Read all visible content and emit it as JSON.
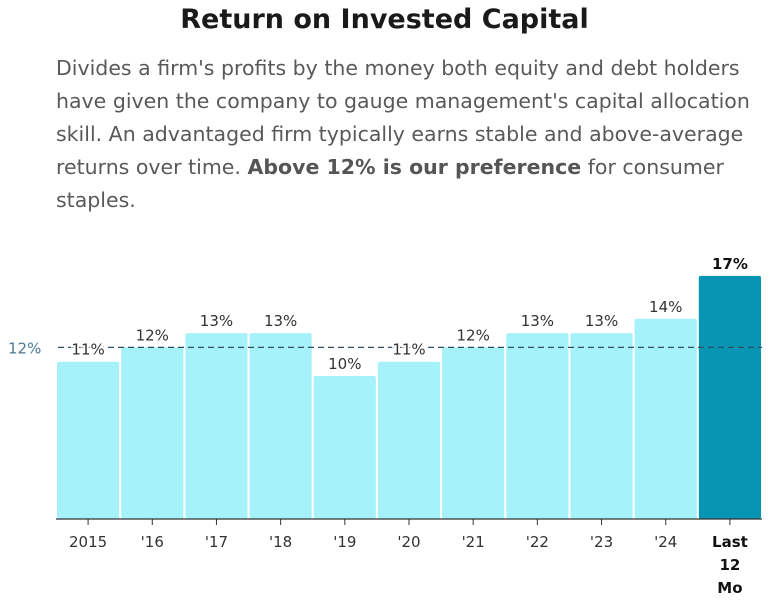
{
  "title": "Return on Invested Capital",
  "description": {
    "part1": "Divides a firm's profits by the money both equity and debt holders have given the company to gauge management's capital allocation skill. An advantaged firm typically earns stable and above-average returns over time. ",
    "bold": "Above 12% is our preference",
    "part2": " for consumer staples."
  },
  "chart_data": {
    "type": "bar",
    "categories": [
      "2015",
      "'16",
      "'17",
      "'18",
      "'19",
      "'20",
      "'21",
      "'22",
      "'23",
      "'24",
      "Last 12 Mo"
    ],
    "values": [
      11,
      12,
      13,
      13,
      10,
      11,
      12,
      13,
      13,
      14,
      17
    ],
    "value_labels": [
      "11%",
      "12%",
      "13%",
      "13%",
      "10%",
      "11%",
      "12%",
      "13%",
      "13%",
      "14%",
      "17%"
    ],
    "highlight_index": 10,
    "reference_line": {
      "value": 12,
      "label": "12%"
    },
    "colors": {
      "bar": "#a6f2fb",
      "highlight": "#0795b3",
      "reference": "#2f4f5f",
      "axis": "#333333"
    },
    "ylim": [
      0,
      17
    ],
    "grid": false
  }
}
